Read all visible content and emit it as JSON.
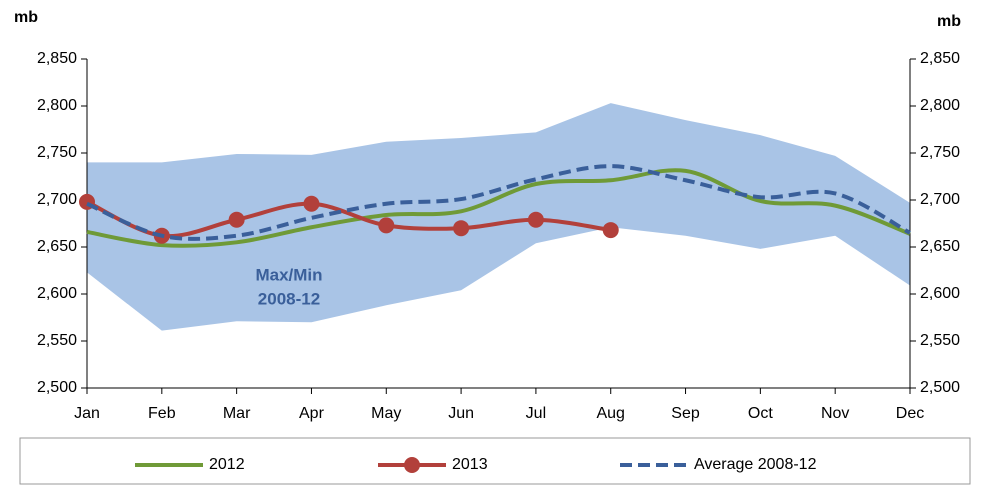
{
  "chart_data": {
    "type": "line",
    "ylabel": "mb",
    "y2label": "mb",
    "categories": [
      "Jan",
      "Feb",
      "Mar",
      "Apr",
      "May",
      "Jun",
      "Jul",
      "Aug",
      "Sep",
      "Oct",
      "Nov",
      "Dec"
    ],
    "band": {
      "label": [
        "Max/Min",
        "2008-12"
      ],
      "color": "#a9c4e6",
      "label_color": "#3a5f9a",
      "max": [
        2740,
        2740,
        2749,
        2748,
        2762,
        2766,
        2772,
        2803,
        2785,
        2769,
        2747,
        2697
      ],
      "min": [
        2623,
        2561,
        2571,
        2570,
        2588,
        2604,
        2654,
        2671,
        2662,
        2648,
        2662,
        2609
      ]
    },
    "series": [
      {
        "name": "2012",
        "color": "#6f9a37",
        "style": "solid",
        "marker": false,
        "values": [
          2666,
          2652,
          2655,
          2671,
          2684,
          2688,
          2717,
          2721,
          2731,
          2699,
          2694,
          2664
        ]
      },
      {
        "name": "2013",
        "color": "#b2403b",
        "style": "solid",
        "marker": true,
        "values": [
          2698,
          2662,
          2679,
          2696,
          2673,
          2670,
          2679,
          2668,
          null,
          null,
          null,
          null
        ]
      },
      {
        "name": "Average 2008-12",
        "color": "#3a5f9a",
        "style": "dashed",
        "marker": false,
        "values": [
          2696,
          2662,
          2662,
          2681,
          2696,
          2701,
          2722,
          2736,
          2721,
          2703,
          2707,
          2665
        ]
      }
    ],
    "ylim": [
      2500,
      2850
    ],
    "yticks": [
      {
        "value": 2500,
        "label": "2,500"
      },
      {
        "value": 2550,
        "label": "2,550"
      },
      {
        "value": 2600,
        "label": "2,600"
      },
      {
        "value": 2650,
        "label": "2,650"
      },
      {
        "value": 2700,
        "label": "2,700"
      },
      {
        "value": 2750,
        "label": "2,750"
      },
      {
        "value": 2800,
        "label": "2,800"
      },
      {
        "value": 2850,
        "label": "2,850"
      }
    ],
    "y2lim": [
      2500,
      2850
    ],
    "y2ticks": [
      {
        "value": 2500,
        "label": "2,500"
      },
      {
        "value": 2550,
        "label": "2,550"
      },
      {
        "value": 2600,
        "label": "2,600"
      },
      {
        "value": 2650,
        "label": "2,650"
      },
      {
        "value": 2700,
        "label": "2,700"
      },
      {
        "value": 2750,
        "label": "2,750"
      },
      {
        "value": 2800,
        "label": "2,800"
      },
      {
        "value": 2850,
        "label": "2,850"
      }
    ],
    "grid": false,
    "legend": "bottom"
  }
}
